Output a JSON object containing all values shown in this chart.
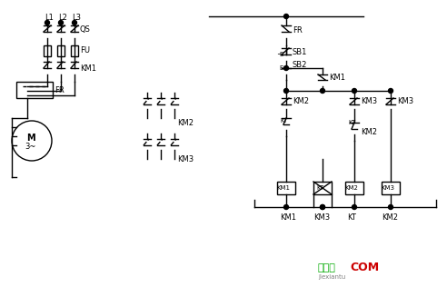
{
  "title": "",
  "bg_color": "#ffffff",
  "line_color": "#000000",
  "text_color": "#000000",
  "green_text": "#00aa00",
  "red_text": "#cc0000",
  "watermark_green": "接线图",
  "watermark_red": "COM",
  "watermark_sub": "jiexiantu"
}
